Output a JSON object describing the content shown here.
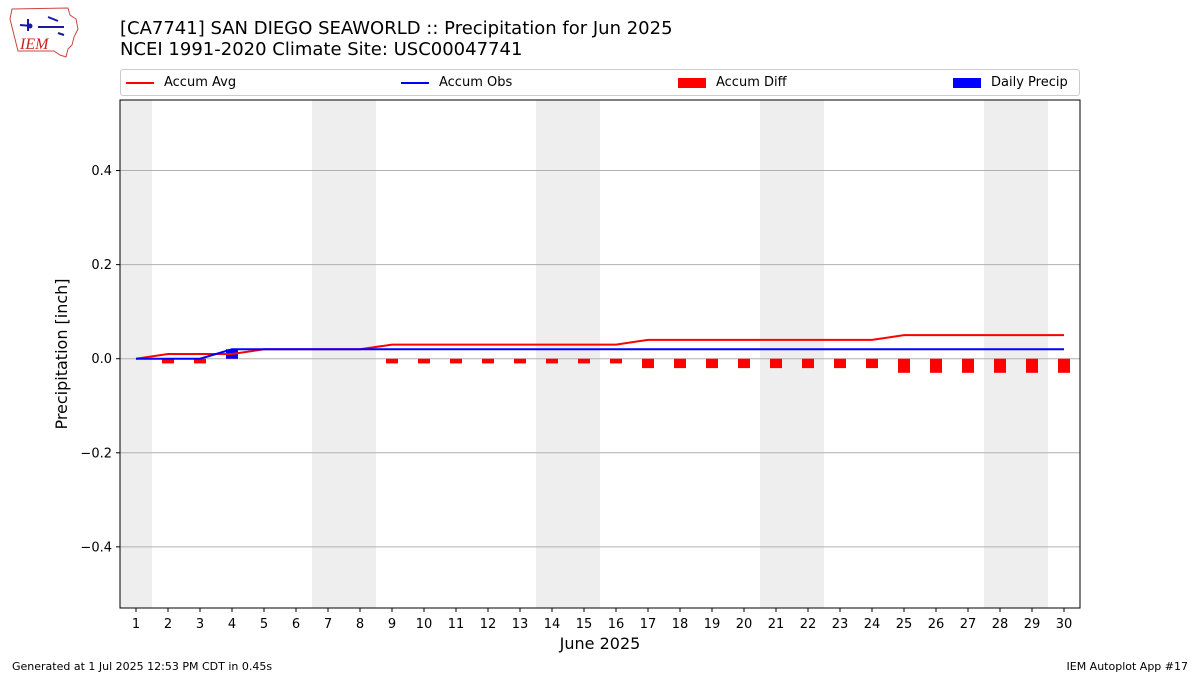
{
  "title_line1": "[CA7741] SAN DIEGO SEAWORLD :: Precipitation for Jun 2025",
  "title_line2": "NCEI 1991-2020 Climate Site: USC00047741",
  "logo_text": "IEM",
  "footer_left": "Generated at 1 Jul 2025 12:53 PM CDT in 0.45s",
  "footer_right": "IEM Autoplot App #17",
  "legend": [
    {
      "label": "Accum Avg",
      "kind": "line",
      "color": "#ff0000"
    },
    {
      "label": "Accum Obs",
      "kind": "line",
      "color": "#0000ff"
    },
    {
      "label": "Accum Diff",
      "kind": "box",
      "color": "#ff0000"
    },
    {
      "label": "Daily Precip",
      "kind": "box",
      "color": "#0000ff"
    }
  ],
  "chart_data": {
    "type": "bar",
    "xlabel": "June 2025",
    "ylabel": "Precipitation [inch]",
    "x": [
      1,
      2,
      3,
      4,
      5,
      6,
      7,
      8,
      9,
      10,
      11,
      12,
      13,
      14,
      15,
      16,
      17,
      18,
      19,
      20,
      21,
      22,
      23,
      24,
      25,
      26,
      27,
      28,
      29,
      30
    ],
    "ylim": [
      -0.53,
      0.55
    ],
    "yticks": [
      0.4,
      0.2,
      0.0,
      -0.2,
      -0.4
    ],
    "ytick_labels": [
      "0.4",
      "0.2",
      "0.0",
      "−0.2",
      "−0.4"
    ],
    "grid": "y",
    "weekend_shading_days": [
      1,
      7,
      8,
      14,
      15,
      21,
      22,
      28,
      29
    ],
    "legend_position": "top",
    "series": [
      {
        "name": "Accum Avg",
        "type": "line",
        "color": "#ff0000",
        "values": [
          0.0,
          0.01,
          0.01,
          0.01,
          0.02,
          0.02,
          0.02,
          0.02,
          0.03,
          0.03,
          0.03,
          0.03,
          0.03,
          0.03,
          0.03,
          0.03,
          0.04,
          0.04,
          0.04,
          0.04,
          0.04,
          0.04,
          0.04,
          0.04,
          0.05,
          0.05,
          0.05,
          0.05,
          0.05,
          0.05
        ]
      },
      {
        "name": "Accum Obs",
        "type": "line",
        "color": "#0000ff",
        "values": [
          0.0,
          0.0,
          0.0,
          0.02,
          0.02,
          0.02,
          0.02,
          0.02,
          0.02,
          0.02,
          0.02,
          0.02,
          0.02,
          0.02,
          0.02,
          0.02,
          0.02,
          0.02,
          0.02,
          0.02,
          0.02,
          0.02,
          0.02,
          0.02,
          0.02,
          0.02,
          0.02,
          0.02,
          0.02,
          0.02
        ]
      },
      {
        "name": "Accum Diff",
        "type": "bar",
        "color": "#ff0000",
        "values": [
          0.0,
          -0.01,
          -0.01,
          0.01,
          0.0,
          0.0,
          0.0,
          0.0,
          -0.01,
          -0.01,
          -0.01,
          -0.01,
          -0.01,
          -0.01,
          -0.01,
          -0.01,
          -0.02,
          -0.02,
          -0.02,
          -0.02,
          -0.02,
          -0.02,
          -0.02,
          -0.02,
          -0.03,
          -0.03,
          -0.03,
          -0.03,
          -0.03,
          -0.03
        ]
      },
      {
        "name": "Daily Precip",
        "type": "bar",
        "color": "#0000ff",
        "values": [
          0,
          0,
          0,
          0.02,
          0,
          0,
          0,
          0,
          0,
          0,
          0,
          0,
          0,
          0,
          0,
          0,
          0,
          0,
          0,
          0,
          0,
          0,
          0,
          0,
          0,
          0,
          0,
          0,
          0,
          0
        ]
      }
    ]
  }
}
